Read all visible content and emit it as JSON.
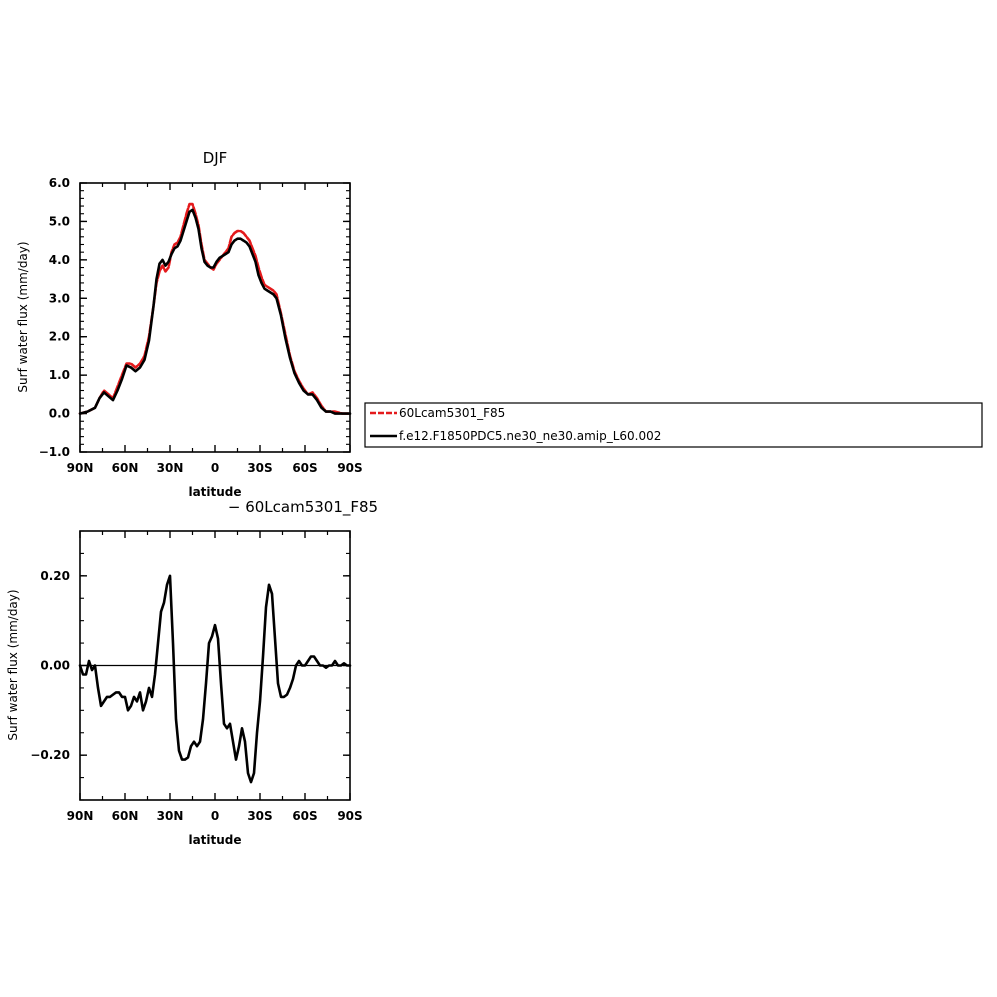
{
  "chart_data": [
    {
      "type": "line",
      "title": "DJF",
      "xlabel": "latitude",
      "ylabel": "Surf water flux (mm/day)",
      "xlim": [
        -90,
        90
      ],
      "ylim": [
        -1.0,
        6.0
      ],
      "x_tick_values": [
        -90,
        -60,
        -30,
        0,
        30,
        60,
        90
      ],
      "x_tick_labels": [
        "90N",
        "60N",
        "30N",
        "0",
        "30S",
        "60S",
        "90S"
      ],
      "y_tick_values": [
        -1,
        0,
        1,
        2,
        3,
        4,
        5,
        6
      ],
      "y_tick_labels": [
        "−1.0",
        "0.0",
        "1.0",
        "2.0",
        "3.0",
        "4.0",
        "5.0",
        "6.0"
      ],
      "series": [
        {
          "name": "60Lcam5301_F85",
          "color": "#e41a1c",
          "style": "dashed",
          "x": [
            -90,
            -85,
            -80,
            -77,
            -74,
            -71,
            -68,
            -65,
            -62,
            -59,
            -56,
            -53,
            -50,
            -47,
            -44,
            -41,
            -39,
            -37,
            -35,
            -33,
            -31,
            -29,
            -27,
            -25,
            -23,
            -21,
            -19,
            -17,
            -15,
            -13,
            -11,
            -9,
            -7,
            -5,
            -3,
            -1,
            1,
            3,
            5,
            7,
            9,
            11,
            13,
            15,
            17,
            19,
            21,
            23,
            25,
            27,
            29,
            31,
            33,
            35,
            37,
            39,
            41,
            44,
            47,
            50,
            53,
            56,
            59,
            62,
            65,
            68,
            71,
            74,
            77,
            80,
            85,
            90
          ],
          "values": [
            0.0,
            0.05,
            0.15,
            0.4,
            0.6,
            0.5,
            0.4,
            0.7,
            1.0,
            1.3,
            1.3,
            1.2,
            1.3,
            1.5,
            2.0,
            2.8,
            3.4,
            3.7,
            3.85,
            3.7,
            3.8,
            4.2,
            4.4,
            4.45,
            4.6,
            4.9,
            5.2,
            5.45,
            5.45,
            5.2,
            4.9,
            4.4,
            4.0,
            3.9,
            3.8,
            3.75,
            3.9,
            4.0,
            4.1,
            4.2,
            4.3,
            4.6,
            4.7,
            4.75,
            4.75,
            4.7,
            4.6,
            4.5,
            4.3,
            4.1,
            3.8,
            3.55,
            3.35,
            3.3,
            3.25,
            3.2,
            3.1,
            2.6,
            2.05,
            1.5,
            1.1,
            0.85,
            0.65,
            0.5,
            0.55,
            0.4,
            0.2,
            0.05,
            0.05,
            0.05,
            0.0,
            0.0
          ]
        },
        {
          "name": "f.e12.F1850PDC5.ne30_ne30.amip_L60.002",
          "color": "#000000",
          "style": "solid",
          "x": [
            -90,
            -85,
            -80,
            -77,
            -74,
            -71,
            -68,
            -65,
            -62,
            -59,
            -56,
            -53,
            -50,
            -47,
            -44,
            -41,
            -39,
            -37,
            -35,
            -33,
            -31,
            -29,
            -27,
            -25,
            -23,
            -21,
            -19,
            -17,
            -15,
            -13,
            -11,
            -9,
            -7,
            -5,
            -3,
            -1,
            1,
            3,
            5,
            7,
            9,
            11,
            13,
            15,
            17,
            19,
            21,
            23,
            25,
            27,
            29,
            31,
            33,
            35,
            37,
            39,
            41,
            44,
            47,
            50,
            53,
            56,
            59,
            62,
            65,
            68,
            71,
            74,
            77,
            80,
            85,
            90
          ],
          "values": [
            0.0,
            0.05,
            0.15,
            0.4,
            0.55,
            0.45,
            0.35,
            0.6,
            0.9,
            1.25,
            1.2,
            1.1,
            1.2,
            1.4,
            1.9,
            2.8,
            3.5,
            3.9,
            4.0,
            3.85,
            3.95,
            4.15,
            4.3,
            4.35,
            4.5,
            4.75,
            5.0,
            5.25,
            5.3,
            5.1,
            4.8,
            4.3,
            3.95,
            3.85,
            3.8,
            3.8,
            3.95,
            4.05,
            4.1,
            4.15,
            4.2,
            4.4,
            4.5,
            4.55,
            4.55,
            4.5,
            4.45,
            4.35,
            4.15,
            3.95,
            3.6,
            3.4,
            3.25,
            3.2,
            3.15,
            3.1,
            3.0,
            2.55,
            1.95,
            1.45,
            1.05,
            0.8,
            0.6,
            0.5,
            0.5,
            0.35,
            0.15,
            0.05,
            0.05,
            0.0,
            0.0,
            0.0
          ]
        }
      ],
      "legend": {
        "placement": "right",
        "entries": [
          "60Lcam5301_F85",
          "f.e12.F1850PDC5.ne30_ne30.amip_L60.002"
        ]
      }
    },
    {
      "type": "line",
      "title": "− 60Lcam5301_F85",
      "xlabel": "latitude",
      "ylabel": "Surf water flux (mm/day)",
      "xlim": [
        -90,
        90
      ],
      "ylim": [
        -0.3,
        0.3
      ],
      "x_tick_values": [
        -90,
        -60,
        -30,
        0,
        30,
        60,
        90
      ],
      "x_tick_labels": [
        "90N",
        "60N",
        "30N",
        "0",
        "30S",
        "60S",
        "90S"
      ],
      "y_tick_values": [
        -0.2,
        0.0,
        0.2
      ],
      "y_tick_labels": [
        "−0.20",
        "0.00",
        "0.20"
      ],
      "series": [
        {
          "name": "",
          "color": "#000000",
          "style": "solid",
          "x": [
            -90,
            -88,
            -86,
            -84,
            -82,
            -80,
            -78,
            -76,
            -74,
            -72,
            -70,
            -68,
            -66,
            -64,
            -62,
            -60,
            -58,
            -56,
            -54,
            -52,
            -50,
            -48,
            -46,
            -44,
            -42,
            -40,
            -38,
            -36,
            -34,
            -32,
            -30,
            -28,
            -26,
            -24,
            -22,
            -20,
            -18,
            -16,
            -14,
            -12,
            -10,
            -8,
            -6,
            -4,
            -2,
            0,
            2,
            4,
            6,
            8,
            10,
            12,
            14,
            16,
            18,
            20,
            22,
            24,
            26,
            28,
            30,
            32,
            34,
            36,
            38,
            40,
            42,
            44,
            46,
            48,
            50,
            52,
            54,
            56,
            58,
            60,
            62,
            64,
            66,
            68,
            70,
            72,
            74,
            76,
            78,
            80,
            82,
            84,
            86,
            88,
            90
          ],
          "values": [
            0.0,
            -0.02,
            -0.02,
            0.01,
            -0.01,
            0.0,
            -0.05,
            -0.09,
            -0.08,
            -0.07,
            -0.07,
            -0.065,
            -0.06,
            -0.06,
            -0.07,
            -0.07,
            -0.1,
            -0.09,
            -0.07,
            -0.08,
            -0.06,
            -0.1,
            -0.08,
            -0.05,
            -0.07,
            -0.02,
            0.05,
            0.12,
            0.14,
            0.18,
            0.2,
            0.05,
            -0.12,
            -0.19,
            -0.21,
            -0.21,
            -0.205,
            -0.18,
            -0.17,
            -0.18,
            -0.17,
            -0.12,
            -0.04,
            0.05,
            0.065,
            0.09,
            0.06,
            -0.04,
            -0.13,
            -0.14,
            -0.13,
            -0.17,
            -0.21,
            -0.18,
            -0.14,
            -0.17,
            -0.24,
            -0.26,
            -0.24,
            -0.15,
            -0.08,
            0.02,
            0.13,
            0.18,
            0.16,
            0.06,
            -0.04,
            -0.07,
            -0.07,
            -0.065,
            -0.05,
            -0.03,
            0.0,
            0.01,
            0.0,
            0.0,
            0.01,
            0.02,
            0.02,
            0.01,
            0.0,
            0.0,
            -0.005,
            0.0,
            0.0,
            0.01,
            0.0,
            0.0,
            0.005,
            0.0,
            0.0
          ]
        }
      ]
    }
  ]
}
